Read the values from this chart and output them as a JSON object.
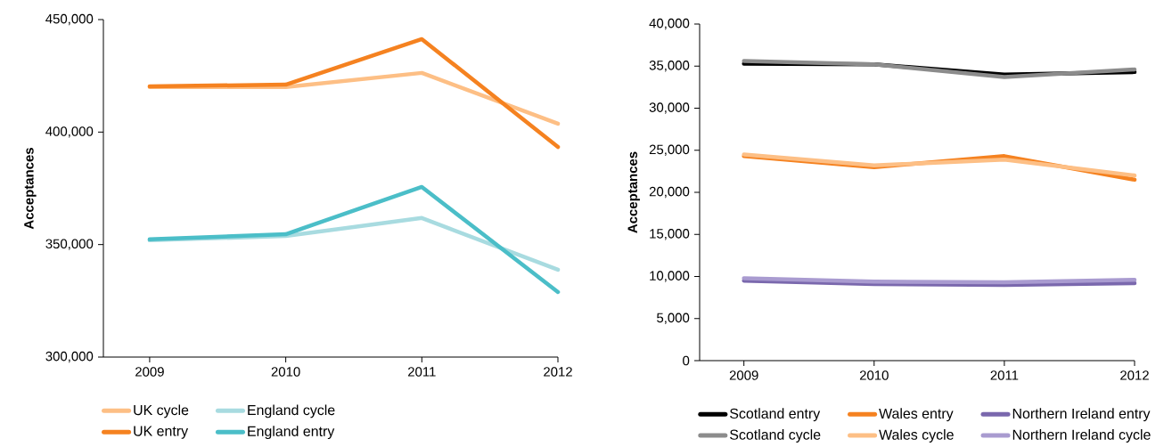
{
  "chart_data": [
    {
      "type": "line",
      "ylabel": "Acceptances",
      "x": [
        2009,
        2010,
        2011,
        2012
      ],
      "xlim": [
        2008.66,
        2012
      ],
      "xticks": [
        2009,
        2010,
        2011,
        2012
      ],
      "ylim": [
        300000,
        450000
      ],
      "yticks": [
        {
          "value": 300000,
          "label": "300,000"
        },
        {
          "value": 350000,
          "label": "350,000"
        },
        {
          "value": 400000,
          "label": "400,000"
        },
        {
          "value": 450000,
          "label": "450,000"
        }
      ],
      "grid": false,
      "legend": "bottom",
      "marker": "none",
      "line_style": "solid",
      "series": [
        {
          "name": "UK cycle",
          "color": "#fdbf85",
          "values": [
            420000,
            420000,
            426300,
            403700
          ]
        },
        {
          "name": "UK entry",
          "color": "#f58220",
          "values": [
            420300,
            421100,
            441300,
            393400
          ]
        },
        {
          "name": "England cycle",
          "color": "#a8dbe0",
          "values": [
            351900,
            353800,
            361800,
            338800
          ]
        },
        {
          "name": "England entry",
          "color": "#4bbec8",
          "values": [
            352300,
            354600,
            375600,
            328900
          ]
        }
      ]
    },
    {
      "type": "line",
      "ylabel": "Acceptances",
      "x": [
        2009,
        2010,
        2011,
        2012
      ],
      "xlim": [
        2008.66,
        2012
      ],
      "xticks": [
        2009,
        2010,
        2011,
        2012
      ],
      "ylim": [
        0,
        40000
      ],
      "yticks": [
        0,
        {
          "value": 5000,
          "label": "5,000"
        },
        {
          "value": 10000,
          "label": "10,000"
        },
        {
          "value": 15000,
          "label": "15,000"
        },
        {
          "value": 20000,
          "label": "20,000"
        },
        {
          "value": 25000,
          "label": "25,000"
        },
        {
          "value": 30000,
          "label": "30,000"
        },
        {
          "value": 35000,
          "label": "35,000"
        },
        {
          "value": 40000,
          "label": "40,000"
        }
      ],
      "grid": false,
      "legend": "bottom",
      "marker": "none",
      "line_style": "solid",
      "series": [
        {
          "name": "Scotland entry",
          "color": "#000000",
          "values": [
            35300,
            35200,
            34000,
            34300
          ]
        },
        {
          "name": "Scotland cycle",
          "color": "#8c8c8c",
          "values": [
            35600,
            35200,
            33700,
            34600
          ]
        },
        {
          "name": "Wales entry",
          "color": "#f58220",
          "values": [
            24300,
            23000,
            24300,
            21500
          ]
        },
        {
          "name": "Wales cycle",
          "color": "#fdbf85",
          "values": [
            24500,
            23200,
            23900,
            22000
          ]
        },
        {
          "name": "Northern Ireland entry",
          "color": "#7a68ad",
          "values": [
            9500,
            9100,
            9000,
            9200
          ]
        },
        {
          "name": "Northern Ireland cycle",
          "color": "#a99bd0",
          "values": [
            9800,
            9400,
            9300,
            9600
          ]
        }
      ]
    }
  ]
}
